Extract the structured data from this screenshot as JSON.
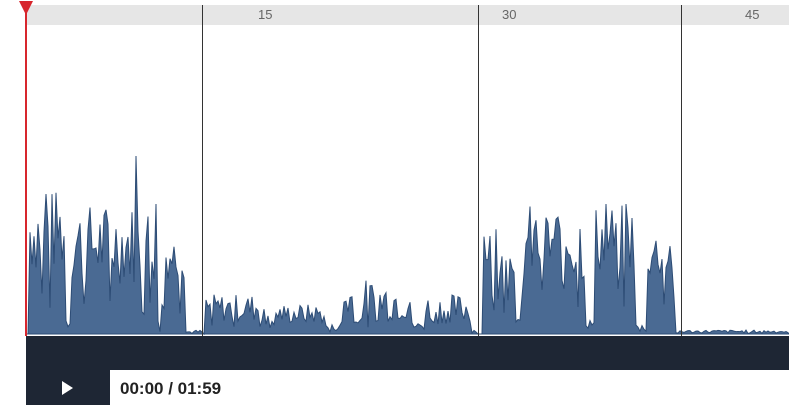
{
  "ruler": {
    "ticks": [
      {
        "label": "15"
      },
      {
        "label": "30"
      },
      {
        "label": "45"
      }
    ]
  },
  "player": {
    "time": "00:00 / 01:59",
    "play_icon": "play-icon"
  },
  "colors": {
    "waveform_fill": "#4a6a93",
    "waveform_stroke": "#2d4c75",
    "playhead": "#d7262d",
    "bar": "#1e2634",
    "ruler": "#e6e6e6"
  }
}
